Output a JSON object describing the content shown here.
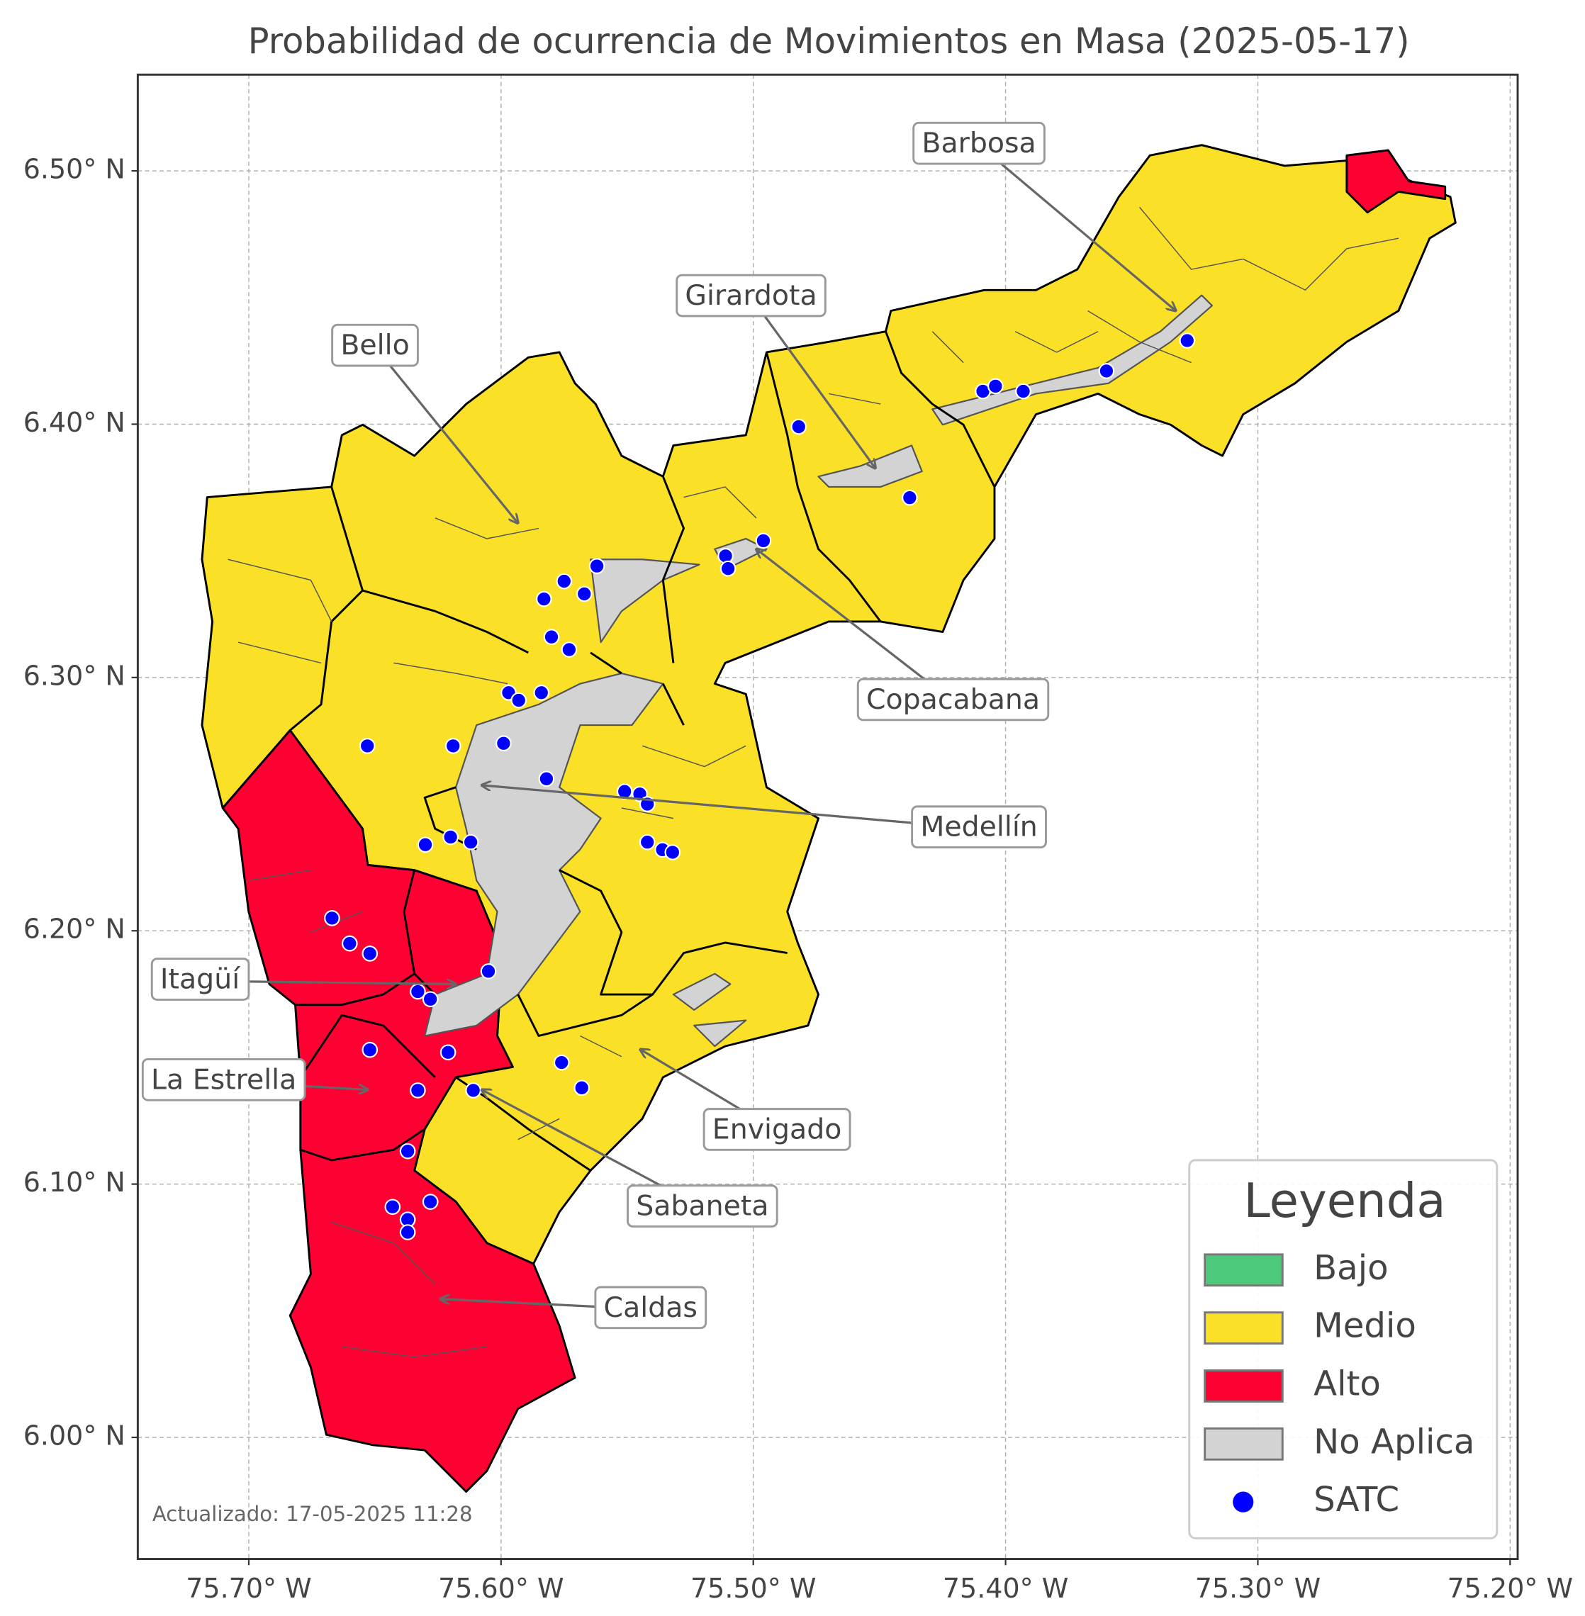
{
  "map": {
    "title": "Probabilidad de ocurrencia de Movimientos en Masa (2025-05-17)",
    "xlim": [
      -75.744,
      -75.197
    ],
    "ylim": [
      5.952,
      6.538
    ],
    "xticks": [
      {
        "value": -75.7,
        "label": "75.70° W"
      },
      {
        "value": -75.6,
        "label": "75.60° W"
      },
      {
        "value": -75.5,
        "label": "75.50° W"
      },
      {
        "value": -75.4,
        "label": "75.40° W"
      },
      {
        "value": -75.3,
        "label": "75.30° W"
      },
      {
        "value": -75.2,
        "label": "75.20° W"
      }
    ],
    "yticks": [
      {
        "value": 6.0,
        "label": "6.00° N"
      },
      {
        "value": 6.1,
        "label": "6.10° N"
      },
      {
        "value": 6.2,
        "label": "6.20° N"
      },
      {
        "value": 6.3,
        "label": "6.30° N"
      },
      {
        "value": 6.4,
        "label": "6.40° N"
      },
      {
        "value": 6.5,
        "label": "6.50° N"
      }
    ],
    "grid": true,
    "municipalities": [
      "Barbosa",
      "Girardota",
      "Bello",
      "Copacabana",
      "Medellín",
      "Itagüí",
      "La Estrella",
      "Envigado",
      "Sabaneta",
      "Caldas"
    ],
    "legend": {
      "title": "Leyenda",
      "position": "lower right",
      "items": [
        {
          "name": "Bajo",
          "color": "#4cc97a"
        },
        {
          "name": "Medio",
          "color": "#fbe028"
        },
        {
          "name": "Alto",
          "color": "#ff0033"
        },
        {
          "name": "No Aplica",
          "color": "#d3d3d3"
        }
      ]
    },
    "satc": {
      "name": "SATC",
      "color": "#0000ff",
      "lon": [
        -75.482,
        -75.438,
        -75.409,
        -75.404,
        -75.393,
        -75.36,
        -75.328,
        -75.496,
        -75.511,
        -75.51,
        -75.562,
        -75.575,
        -75.567,
        -75.583,
        -75.58,
        -75.573,
        -75.597,
        -75.593,
        -75.584,
        -75.653,
        -75.619,
        -75.599,
        -75.582,
        -75.551,
        -75.545,
        -75.542,
        -75.542,
        -75.536,
        -75.532,
        -75.63,
        -75.62,
        -75.612,
        -75.667,
        -75.66,
        -75.652,
        -75.605,
        -75.633,
        -75.628,
        -75.652,
        -75.621,
        -75.576,
        -75.568,
        -75.633,
        -75.611,
        -75.637,
        -75.643,
        -75.628,
        -75.637,
        -75.637
      ],
      "lat": [
        6.399,
        6.371,
        6.413,
        6.415,
        6.413,
        6.421,
        6.433,
        6.354,
        6.348,
        6.343,
        6.344,
        6.338,
        6.333,
        6.331,
        6.316,
        6.311,
        6.294,
        6.291,
        6.294,
        6.273,
        6.273,
        6.274,
        6.26,
        6.255,
        6.254,
        6.25,
        6.235,
        6.232,
        6.231,
        6.234,
        6.237,
        6.235,
        6.205,
        6.195,
        6.191,
        6.184,
        6.176,
        6.173,
        6.153,
        6.152,
        6.148,
        6.138,
        6.137,
        6.137,
        6.113,
        6.091,
        6.093,
        6.086,
        6.081
      ]
    },
    "note": "Actualizado: 17-05-2025 11:28"
  }
}
